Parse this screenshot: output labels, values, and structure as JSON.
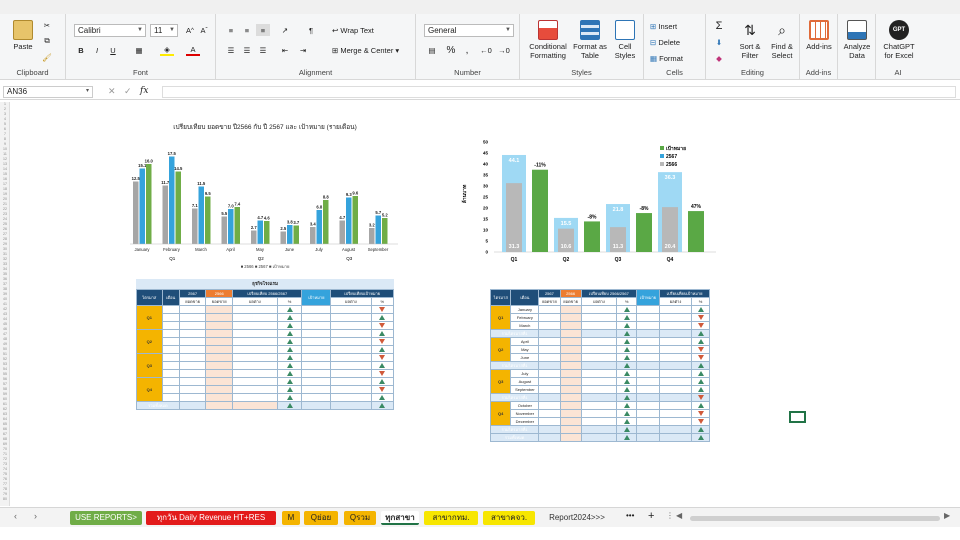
{
  "ribbon": {
    "clipboard": {
      "label": "Clipboard",
      "paste": "Paste"
    },
    "font": {
      "label": "Font",
      "name": "Calibri",
      "size": "11"
    },
    "alignment": {
      "label": "Alignment",
      "wrap": "Wrap Text",
      "merge": "Merge & Center"
    },
    "number": {
      "label": "Number",
      "format": "General"
    },
    "styles": {
      "label": "Styles",
      "cond1": "Conditional",
      "cond2": "Formatting",
      "fmt1": "Format as",
      "fmt2": "Table",
      "cell1": "Cell",
      "cell2": "Styles"
    },
    "cells": {
      "label": "Cells",
      "insert": "Insert",
      "delete": "Delete",
      "format": "Format"
    },
    "editing": {
      "label": "Editing",
      "sort1": "Sort &",
      "sort2": "Filter",
      "find1": "Find &",
      "find2": "Select"
    },
    "addins": {
      "label": "Add-ins",
      "btn": "Add-ins"
    },
    "analyze": {
      "l1": "Analyze",
      "l2": "Data"
    },
    "ai": {
      "label": "AI",
      "l1": "ChatGPT",
      "l2": "for Excel",
      "badge": "GPT"
    }
  },
  "formula_bar": {
    "cell_ref": "AN36",
    "fx": "fx",
    "value": ""
  },
  "left_chart": {
    "title": "เปรียบเทียบ ยอดขาย ปี2566 กับ ปี 2567 และ เป้าหมาย (รายเดือน)",
    "legend": "■ 2566  ■ 2567  ■ เป้าหมาย",
    "group_labels": [
      "Q1",
      "Q2",
      "Q3"
    ]
  },
  "right_chart": {
    "ylabel": "ล้านบาท",
    "legend": [
      "เป้าหมาย",
      "2567",
      "2566"
    ],
    "yticks": [
      "0",
      "5",
      "10",
      "15",
      "20",
      "25",
      "30",
      "35",
      "40",
      "45",
      "50"
    ]
  },
  "chart_data": [
    {
      "type": "bar",
      "title": "เปรียบเทียบ ยอดขาย ปี2566 กับ ปี 2567 และ เป้าหมาย (รายเดือน)",
      "categories": [
        "January",
        "February",
        "March",
        "April",
        "May",
        "June",
        "July",
        "August",
        "September"
      ],
      "series": [
        {
          "name": "2566",
          "values": [
            12.5,
            11.7,
            7.1,
            5.5,
            2.7,
            2.5,
            3.4,
            4.7,
            3.2
          ]
        },
        {
          "name": "2567",
          "values": [
            15.1,
            17.5,
            11.5,
            7.0,
            4.7,
            3.8,
            6.8,
            9.3,
            5.7
          ]
        },
        {
          "name": "เป้าหมาย",
          "values": [
            16.0,
            14.5,
            9.5,
            7.4,
            4.6,
            3.7,
            8.8,
            9.6,
            5.2
          ]
        }
      ],
      "colors": {
        "2566": "#a6a6a6",
        "2567": "#35a3dc",
        "เป้าหมาย": "#70ad47"
      }
    },
    {
      "type": "bar",
      "categories": [
        "Q1",
        "Q2",
        "Q3",
        "Q4"
      ],
      "ylabel": "ล้านบาท",
      "ylim": [
        0,
        50
      ],
      "series": [
        {
          "name": "2566",
          "values": [
            31.3,
            10.6,
            11.3,
            20.4
          ]
        },
        {
          "name": "2567",
          "values": [
            44.1,
            15.5,
            21.8,
            36.3
          ]
        },
        {
          "name": "เป้าหมาย",
          "values": [
            37.4,
            13.9,
            17.7,
            18.6
          ]
        }
      ],
      "pct_labels": [
        "-11%",
        "-8%",
        "-8%",
        "47%"
      ]
    }
  ],
  "left_table": {
    "title": "ธุรกิจโรงแรม",
    "headers": [
      "ไตรมาส",
      "เดือน",
      "2567",
      "2566",
      "เปรียบเทียบ 2566/2567",
      "เป้าหมาย",
      "เปรียบเทียบเป้าหมาย"
    ],
    "subheaders": [
      "ยอดขาย",
      "ยอดขาย",
      "ผลต่าง",
      "%",
      "ผลต่าง",
      "%"
    ],
    "quarters": [
      "Q1",
      "Q2",
      "Q3",
      "Q4"
    ],
    "total": "รวมทั้งหมด"
  },
  "right_table": {
    "headers": [
      "ไตรมาส",
      "เดือน",
      "2567",
      "2566",
      "เปรียบเทียบ 2566/2567",
      "เป้าหมาย",
      "เปรียบเทียบเป้าหมาย"
    ],
    "subheaders": [
      "ยอดขาย",
      "ยอดขาย",
      "ผลต่าง",
      "%",
      "ผลต่าง",
      "%"
    ],
    "quarters": [
      "Q1",
      "Q2",
      "Q3",
      "Q4"
    ],
    "months": [
      [
        "January",
        "February",
        "March"
      ],
      [
        "April",
        "May",
        "June"
      ],
      [
        "July",
        "August",
        "September"
      ],
      [
        "October",
        "November",
        "December"
      ]
    ],
    "subtotal": "รวมไตรมาสที่1",
    "total": "รวมทั้งหมด"
  },
  "tabs": [
    {
      "label": "USE REPORTS>",
      "bg": "#70ad47",
      "fg": "#fff"
    },
    {
      "label": "ทุกวัน Daily Revenue HT+RES",
      "bg": "#e31b1b",
      "fg": "#fff"
    },
    {
      "label": "M",
      "bg": "#f4b400",
      "fg": "#222"
    },
    {
      "label": "Qย่อย",
      "bg": "#f4b400",
      "fg": "#222"
    },
    {
      "label": "Qรวม",
      "bg": "#f4b400",
      "fg": "#222"
    },
    {
      "label": "ทุกสาขา",
      "bg": "#ffffff",
      "fg": "#222"
    },
    {
      "label": "สาขากทม.",
      "bg": "#f7e600",
      "fg": "#222"
    },
    {
      "label": "สาขาคจว.",
      "bg": "#f7e600",
      "fg": "#222"
    },
    {
      "label": "Report2024>>>",
      "bg": "#f3f3f3",
      "fg": "#333"
    }
  ],
  "tab_more": "•••",
  "tab_add": "+"
}
